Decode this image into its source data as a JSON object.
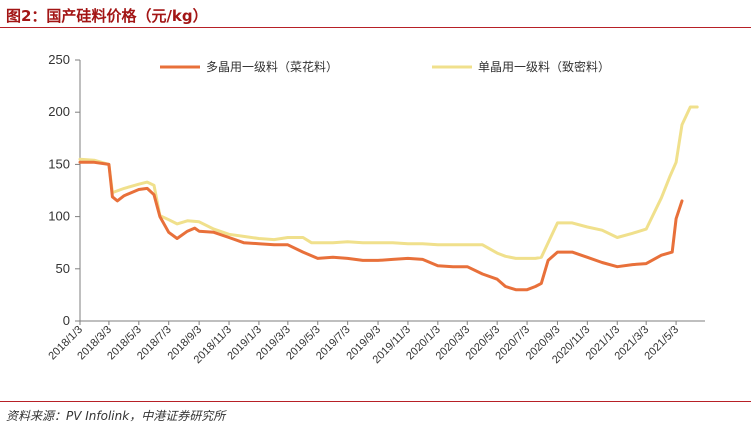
{
  "figure": {
    "title": "图2：国产硅料价格（元/kg）",
    "source": "资料来源：PV Infolink，中港证券研究所"
  },
  "chart_data": {
    "type": "line",
    "ylabel": "",
    "xlabel": "",
    "ylim": [
      0,
      250
    ],
    "yticks": [
      0,
      50,
      100,
      150,
      200,
      250
    ],
    "grid": false,
    "legend_position": "top",
    "x_tick_labels": [
      "2018/1/3",
      "2018/3/3",
      "2018/5/3",
      "2018/7/3",
      "2018/9/3",
      "2018/11/3",
      "2019/1/3",
      "2019/3/3",
      "2019/5/3",
      "2019/7/3",
      "2019/9/3",
      "2019/11/3",
      "2020/1/3",
      "2020/3/3",
      "2020/5/3",
      "2020/7/3",
      "2020/9/3",
      "2020/11/3",
      "2021/1/3",
      "2021/3/3",
      "2021/5/3"
    ],
    "series": [
      {
        "name": "多晶用一级料（菜花料）",
        "color": "#e8703a",
        "x": [
          "2018/1/3",
          "2018/2/1",
          "2018/3/3",
          "2018/3/10",
          "2018/3/20",
          "2018/4/3",
          "2018/5/3",
          "2018/5/20",
          "2018/6/3",
          "2018/6/15",
          "2018/7/3",
          "2018/7/20",
          "2018/8/10",
          "2018/8/25",
          "2018/9/3",
          "2018/10/3",
          "2018/11/3",
          "2018/12/3",
          "2019/1/3",
          "2019/2/3",
          "2019/3/3",
          "2019/4/3",
          "2019/5/3",
          "2019/6/3",
          "2019/7/3",
          "2019/8/3",
          "2019/9/3",
          "2019/10/3",
          "2019/11/3",
          "2019/12/3",
          "2020/1/3",
          "2020/2/3",
          "2020/3/3",
          "2020/4/3",
          "2020/5/3",
          "2020/5/20",
          "2020/6/10",
          "2020/7/3",
          "2020/7/20",
          "2020/8/1",
          "2020/8/15",
          "2020/9/3",
          "2020/10/3",
          "2020/11/3",
          "2020/12/3",
          "2021/1/3",
          "2021/2/3",
          "2021/3/3",
          "2021/4/3",
          "2021/4/25",
          "2021/5/3",
          "2021/5/15"
        ],
        "values": [
          152,
          152,
          150,
          119,
          115,
          120,
          126,
          127,
          121,
          100,
          85,
          79,
          86,
          89,
          86,
          85,
          80,
          75,
          74,
          73,
          73,
          66,
          60,
          61,
          60,
          58,
          58,
          59,
          60,
          59,
          53,
          52,
          52,
          45,
          40,
          33,
          30,
          30,
          33,
          36,
          58,
          66,
          66,
          61,
          56,
          52,
          54,
          55,
          63,
          66,
          98,
          115
        ]
      },
      {
        "name": "单晶用一级料（致密料）",
        "color": "#f0e08c",
        "x": [
          "2018/1/3",
          "2018/2/1",
          "2018/3/3",
          "2018/3/10",
          "2018/4/3",
          "2018/5/3",
          "2018/5/20",
          "2018/6/3",
          "2018/6/15",
          "2018/7/3",
          "2018/7/20",
          "2018/8/10",
          "2018/9/3",
          "2018/10/3",
          "2018/11/3",
          "2018/12/3",
          "2019/1/3",
          "2019/2/3",
          "2019/3/3",
          "2019/4/3",
          "2019/4/20",
          "2019/5/3",
          "2019/6/3",
          "2019/7/3",
          "2019/8/3",
          "2019/9/3",
          "2019/10/3",
          "2019/11/3",
          "2019/12/3",
          "2020/1/3",
          "2020/2/3",
          "2020/3/3",
          "2020/4/3",
          "2020/5/3",
          "2020/5/20",
          "2020/6/10",
          "2020/7/3",
          "2020/7/20",
          "2020/8/1",
          "2020/8/20",
          "2020/9/3",
          "2020/10/3",
          "2020/11/3",
          "2020/12/3",
          "2021/1/3",
          "2021/2/3",
          "2021/3/3",
          "2021/4/3",
          "2021/4/20",
          "2021/5/3",
          "2021/5/15",
          "2021/6/1",
          "2021/6/15"
        ],
        "values": [
          155,
          154,
          150,
          123,
          127,
          131,
          133,
          130,
          101,
          97,
          93,
          96,
          95,
          88,
          83,
          81,
          79,
          78,
          80,
          80,
          75,
          75,
          75,
          76,
          75,
          75,
          75,
          74,
          74,
          73,
          73,
          73,
          73,
          65,
          62,
          60,
          60,
          60,
          61,
          80,
          94,
          94,
          90,
          87,
          80,
          84,
          88,
          118,
          138,
          152,
          188,
          205,
          205
        ]
      }
    ]
  }
}
